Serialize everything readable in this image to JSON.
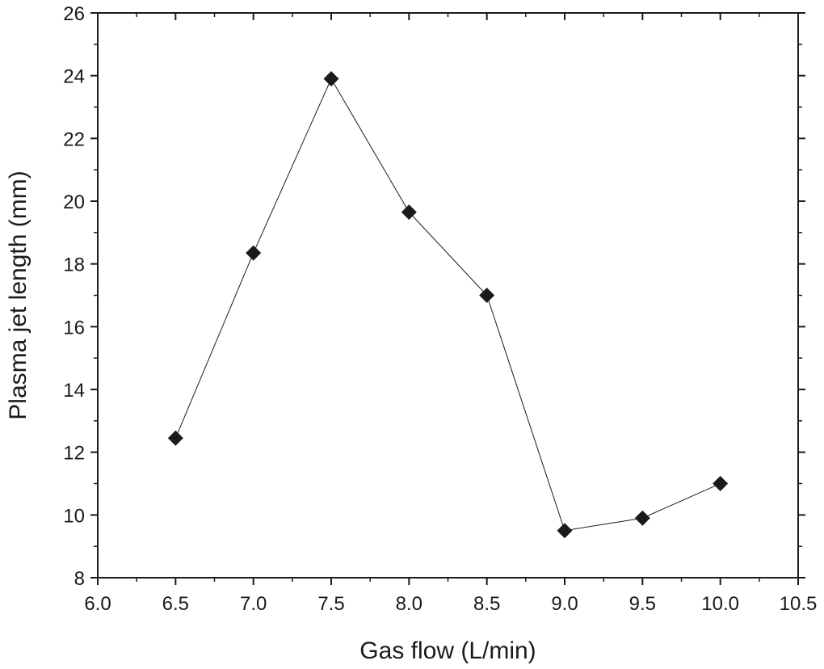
{
  "chart_data": {
    "type": "scatter",
    "title": "",
    "xlabel": "Gas flow (L/min)",
    "ylabel": "Plasma jet length (mm)",
    "xlim": [
      6.0,
      10.5
    ],
    "ylim": [
      8,
      26
    ],
    "x_ticks": [
      "6.0",
      "6.5",
      "7.0",
      "7.5",
      "8.0",
      "8.5",
      "9.0",
      "9.5",
      "10.0",
      "10.5"
    ],
    "y_ticks": [
      "8",
      "10",
      "12",
      "14",
      "16",
      "18",
      "20",
      "22",
      "24",
      "26"
    ],
    "grid": false,
    "legend": "none",
    "marker": "diamond",
    "connected_line": true,
    "colors": {
      "marker": "#1a1a1a",
      "line": "#1a1a1a",
      "axis": "#1a1a1a"
    },
    "series": [
      {
        "x": [
          6.5,
          7.0,
          7.5,
          8.0,
          8.5,
          9.0,
          9.5,
          10.0
        ],
        "y": [
          12.45,
          18.35,
          23.9,
          19.65,
          17.0,
          9.5,
          9.9,
          11.0
        ]
      }
    ]
  }
}
